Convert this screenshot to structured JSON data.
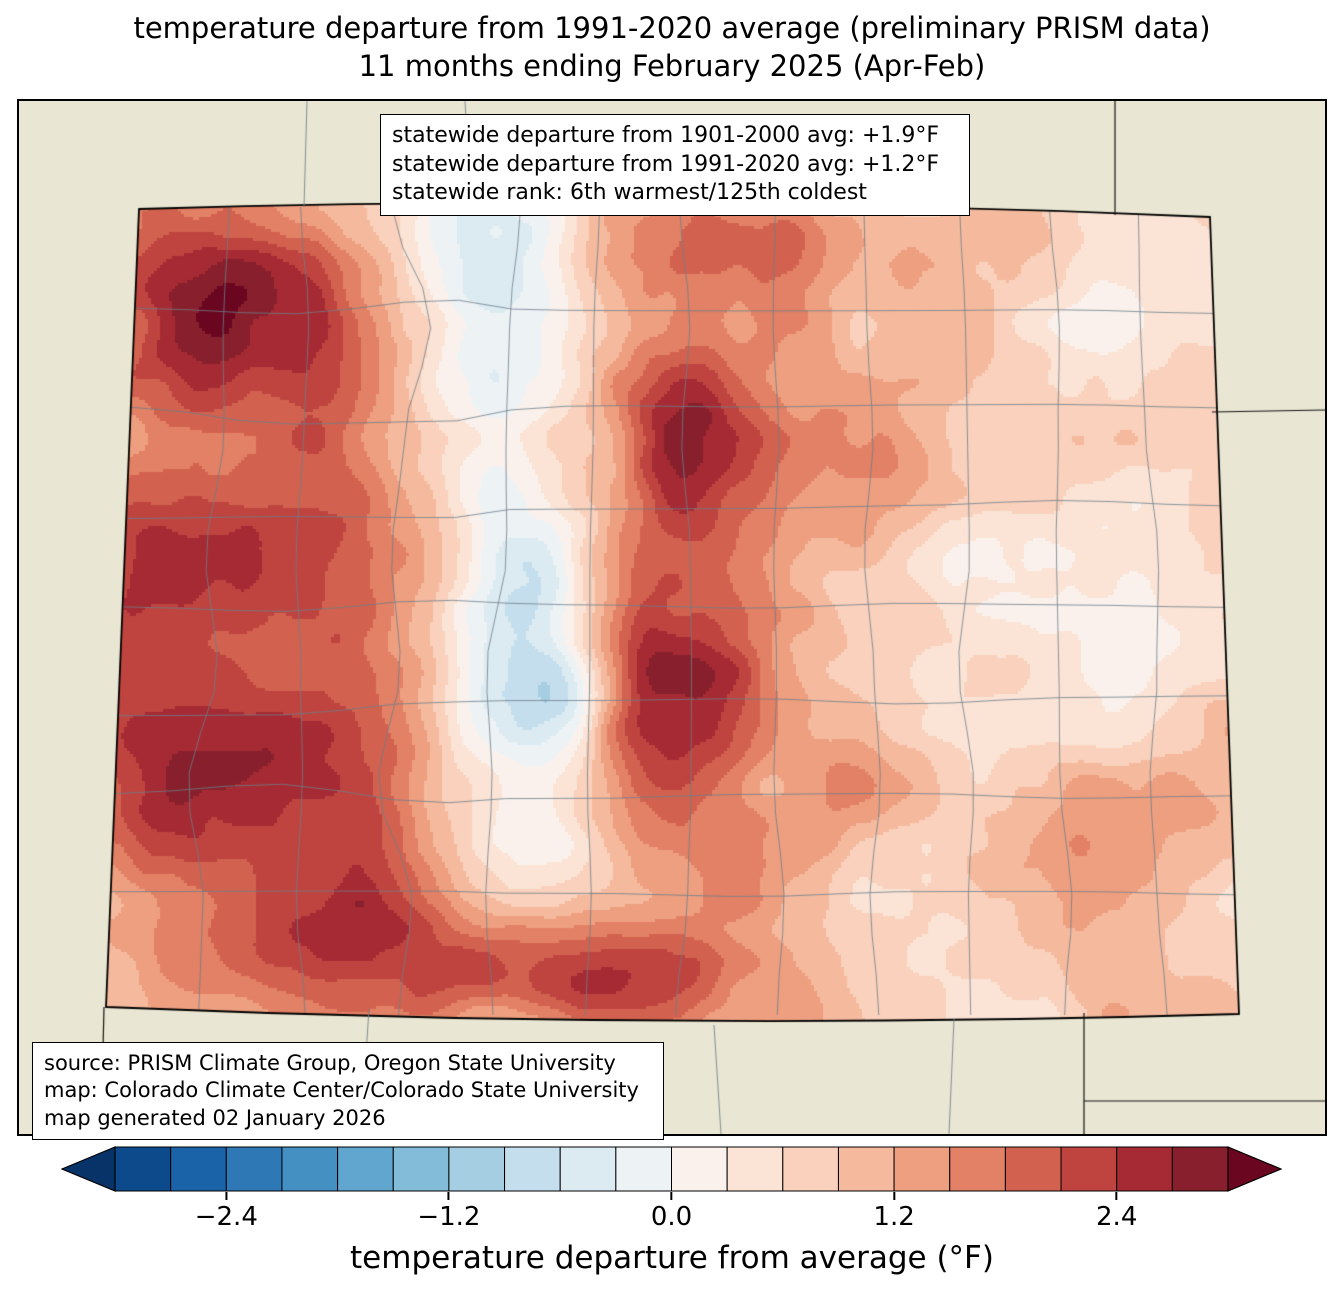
{
  "title": {
    "line1": "temperature departure from 1991-2020 average (preliminary PRISM data)",
    "line2": "11 months ending February 2025 (Apr-Feb)"
  },
  "stats_box": {
    "lines": [
      "statewide departure from 1901-2000 avg: +1.9°F",
      "statewide departure from 1991-2020 avg: +1.2°F",
      "statewide rank: 6th warmest/125th coldest"
    ],
    "departure_1901_2000_F": 1.9,
    "departure_1991_2020_F": 1.2,
    "rank": "6th warmest/125th coldest"
  },
  "source_box": {
    "lines": [
      "source: PRISM Climate Group, Oregon State University",
      "map: Colorado Climate Center/Colorado State University",
      "map generated 02 January 2026"
    ]
  },
  "colorbar": {
    "label": "temperature departure from average (°F)",
    "min": -3.0,
    "max": 3.0,
    "step": 0.3,
    "ticks": [
      -2.4,
      -1.2,
      0.0,
      1.2,
      2.4
    ],
    "tick_labels": [
      "−2.4",
      "−1.2",
      "0.0",
      "1.2",
      "2.4"
    ],
    "under_color": "#083368",
    "over_color": "#6b0620",
    "colors": [
      "#0d4a8b",
      "#1b63a8",
      "#2e79b5",
      "#4490c2",
      "#60a6cf",
      "#83bcd9",
      "#a6cee3",
      "#c4deed",
      "#dcebf2",
      "#edf2f5",
      "#faf1ec",
      "#fbe4d6",
      "#f9d1bc",
      "#f5ba9e",
      "#ee9f80",
      "#e28165",
      "#d2624f",
      "#bf4440",
      "#a62a33",
      "#87202c"
    ]
  },
  "map": {
    "region": "Colorado",
    "background_color": "#e9e7d3",
    "state_border_color": "#000000",
    "county_line_color": "#6e7e8a"
  }
}
